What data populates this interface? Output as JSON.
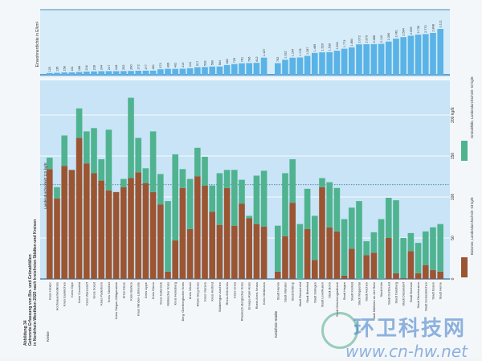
{
  "figure": {
    "label": "Abbildung 34",
    "title": "Getrennte Erfassung von Bio- und Grünabfällen",
    "subtitle": "in Nordrhein-Westfalen 2020 nach kreisfreien Städten und Kreisen"
  },
  "watermark": {
    "text_cn": "环卫科技网",
    "url": "www.cn-hw.net"
  },
  "colors": {
    "biotonne": "#9b5532",
    "gruen": "#4fb38f",
    "density": "#5ab3e6",
    "panel": "#c8e4f6",
    "average_line": "#4a7fa8"
  },
  "chart_data": [
    {
      "type": "bar",
      "title": "Einwohnerdichte in E/km²",
      "groups": [
        {
          "name": "Kreise",
          "values": [
            120,
            135,
            158,
            161,
            186,
            216,
            228,
            244,
            247,
            248,
            252,
            260,
            272,
            277,
            281,
            373,
            406,
            402,
            413,
            444,
            517,
            528,
            560,
            564,
            662,
            729,
            781,
            796,
            812,
            1167
          ]
        },
        {
          "name": "Kreisfreie Städte",
          "values": [
            792,
            1022,
            1164,
            1178,
            1287,
            1489,
            1529,
            1539,
            1634,
            1773,
            1864,
            2072,
            2079,
            2088,
            2110,
            2260,
            2461,
            2564,
            2659,
            2735,
            2770,
            2848,
            3121
          ]
        }
      ],
      "value_labels": {
        "Kreise": [
          "120",
          "135",
          "158",
          "161",
          "186",
          "216",
          "228",
          "244",
          "247",
          "248",
          "252",
          "260",
          "272",
          "277",
          "281",
          "373",
          "406",
          "402",
          "413",
          "444",
          "517",
          "528",
          "560",
          "564",
          "662",
          "729",
          "781",
          "796",
          "812",
          "1.167"
        ],
        "Kreisfreie Städte": [
          "792",
          "1.022",
          "1.164",
          "1.178",
          "1.287",
          "1.489",
          "1.529",
          "1.539",
          "1.634",
          "1.773",
          "1.864",
          "2.072",
          "2.079",
          "2.088",
          "2.110",
          "2.260",
          "2.461",
          "2.564",
          "2.659",
          "2.735",
          "2.770",
          "2.848",
          "3.121"
        ]
      }
    },
    {
      "type": "bar",
      "stacked": true,
      "ylim": [
        0,
        200
      ],
      "yticks": [
        "0",
        "50",
        "100",
        "150",
        "200 kg/E"
      ],
      "ytick_values": [
        0,
        50,
        100,
        150,
        200
      ],
      "grid": true,
      "average": {
        "value": 115,
        "label": "Landesdurchschnitt 115 kg/E"
      },
      "legend_position": "right",
      "series": [
        {
          "name": "Biotonne, Landesdurchschnitt: 53 kg/E",
          "key": "biotonne"
        },
        {
          "name": "Grünabfälle, Landesdurchschnitt: 62 kg/E",
          "key": "gruen"
        }
      ],
      "groups": [
        {
          "name": "Kreise",
          "categories": [
            "Kreis Höxter",
            "Hochsauerlandkreis",
            "Kreis Euskirchen",
            "Kreis Olpe",
            "Kreis Coesfeld",
            "Kreis Warendorf",
            "Kreis Soest",
            "Kreis Paderborn",
            "Kreis Steinfurt",
            "Kreis Siegen-Wittgenstein",
            "Kreis Kleve",
            "Kreis Borken",
            "Kreis Minden-Lübbecke",
            "Kreis Lippe",
            "Kreis Düren",
            "Kreis Gütersloh",
            "Märkischer Kreis",
            "Kreis Heinsberg",
            "Berg. Oberbergischer Kreis",
            "Kreis Wesel",
            "Rhein-Sieg-Kreis",
            "Kreis Viersen",
            "Kreis Herford",
            "Städteregion Aachen",
            "Rhein-Erft-Kreis",
            "Kreis Unna",
            "Rheinisch-Bergischer Kreis",
            "Ennepe-Ruhr-Kreis",
            "Rhein-Kreis Neuss",
            "Kreis Mettmann"
          ],
          "biotonne": [
            134,
            98,
            138,
            133,
            172,
            141,
            129,
            120,
            108,
            106,
            112,
            123,
            130,
            117,
            106,
            91,
            9,
            47,
            111,
            61,
            125,
            114,
            82,
            66,
            111,
            65,
            92,
            74,
            67,
            64
          ],
          "gruen": [
            14,
            14,
            37,
            0,
            36,
            39,
            55,
            26,
            74,
            0,
            10,
            98,
            42,
            18,
            74,
            37,
            86,
            105,
            23,
            61,
            35,
            35,
            32,
            63,
            22,
            68,
            29,
            3,
            59,
            68
          ]
        },
        {
          "name": "Kreisfreie Städte",
          "categories": [
            "Stadt Hamm",
            "Stadt Münster",
            "Stadt Bottrop",
            "Stadt Remscheid",
            "Stadt Bielefeld",
            "Stadt Solingen",
            "Stadt Leverkusen",
            "Stadt Bonn",
            "Stadt Mönchengladbach",
            "Stadt Hagen",
            "Stadt Krefeld",
            "Stadt Wuppertal",
            "Stadt Aachen",
            "Stadt Mülheim an der Ruhr",
            "Stadt Köln",
            "Stadt Dortmund",
            "Stadt Duisburg",
            "Stadt Düsseldorf",
            "Stadt Bochum",
            "Stadt Oberhausen",
            "Stadt Gelsenkirchen",
            "Stadt Essen",
            "Stadt Herne"
          ],
          "biotonne": [
            9,
            52,
            93,
            0,
            61,
            23,
            112,
            63,
            58,
            4,
            37,
            0,
            29,
            32,
            0,
            50,
            7,
            1,
            34,
            7,
            17,
            11,
            9
          ],
          "gruen": [
            56,
            77,
            53,
            67,
            49,
            54,
            11,
            55,
            53,
            69,
            50,
            95,
            17,
            25,
            73,
            49,
            89,
            49,
            22,
            37,
            41,
            52,
            58
          ]
        }
      ]
    }
  ]
}
